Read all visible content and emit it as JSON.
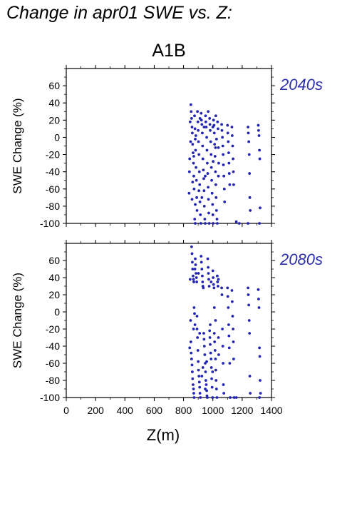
{
  "figure": {
    "title": "Change in apr01 SWE vs. Z:",
    "subtitle": "A1B"
  },
  "colors": {
    "points": "#2224b4",
    "panel_label": "#2b2fae",
    "axis": "#000000"
  },
  "chart_data": [
    {
      "type": "scatter",
      "panel_label": "2040s",
      "ylabel": "SWE Change (%)",
      "xlabel": "",
      "xlim": [
        0,
        1400
      ],
      "ylim": [
        -100,
        80
      ],
      "xticks": [
        0,
        200,
        400,
        600,
        800,
        1000,
        1200,
        1400
      ],
      "yticks": [
        -100,
        -80,
        -60,
        -40,
        -20,
        0,
        20,
        40,
        60
      ],
      "points": [
        [
          850,
          38
        ],
        [
          852,
          30
        ],
        [
          855,
          22
        ],
        [
          858,
          12
        ],
        [
          860,
          5
        ],
        [
          862,
          -8
        ],
        [
          865,
          -18
        ],
        [
          868,
          -30
        ],
        [
          870,
          -45
        ],
        [
          872,
          -60
        ],
        [
          845,
          18
        ],
        [
          848,
          -5
        ],
        [
          842,
          -25
        ],
        [
          840,
          -40
        ],
        [
          838,
          -65
        ],
        [
          875,
          25
        ],
        [
          878,
          10
        ],
        [
          880,
          -2
        ],
        [
          882,
          -15
        ],
        [
          885,
          -35
        ],
        [
          888,
          -50
        ],
        [
          890,
          -70
        ],
        [
          892,
          -85
        ],
        [
          876,
          -95
        ],
        [
          880,
          -100
        ],
        [
          895,
          30
        ],
        [
          898,
          18
        ],
        [
          900,
          8
        ],
        [
          902,
          -5
        ],
        [
          905,
          -20
        ],
        [
          908,
          -40
        ],
        [
          910,
          -55
        ],
        [
          912,
          -75
        ],
        [
          915,
          -90
        ],
        [
          918,
          -100
        ],
        [
          920,
          28
        ],
        [
          922,
          20
        ],
        [
          925,
          15
        ],
        [
          928,
          5
        ],
        [
          930,
          -10
        ],
        [
          932,
          -25
        ],
        [
          935,
          -38
        ],
        [
          938,
          -48
        ],
        [
          940,
          -62
        ],
        [
          942,
          -80
        ],
        [
          945,
          -95
        ],
        [
          948,
          -100
        ],
        [
          950,
          25
        ],
        [
          952,
          18
        ],
        [
          955,
          12
        ],
        [
          958,
          0
        ],
        [
          960,
          -15
        ],
        [
          962,
          -30
        ],
        [
          965,
          -42
        ],
        [
          968,
          -58
        ],
        [
          970,
          -72
        ],
        [
          972,
          -88
        ],
        [
          975,
          -100
        ],
        [
          978,
          22
        ],
        [
          980,
          15
        ],
        [
          982,
          8
        ],
        [
          985,
          -5
        ],
        [
          988,
          -20
        ],
        [
          990,
          -35
        ],
        [
          992,
          -50
        ],
        [
          995,
          -65
        ],
        [
          998,
          -78
        ],
        [
          1000,
          -90
        ],
        [
          1002,
          -100
        ],
        [
          1005,
          20
        ],
        [
          1008,
          14
        ],
        [
          1010,
          5
        ],
        [
          1012,
          -8
        ],
        [
          1015,
          -22
        ],
        [
          1018,
          -40
        ],
        [
          1020,
          -55
        ],
        [
          1022,
          -70
        ],
        [
          1025,
          -85
        ],
        [
          1028,
          -95
        ],
        [
          1030,
          -100
        ],
        [
          1032,
          18
        ],
        [
          1035,
          10
        ],
        [
          1038,
          -12
        ],
        [
          1040,
          -30
        ],
        [
          1060,
          15
        ],
        [
          1062,
          8
        ],
        [
          1065,
          0
        ],
        [
          1068,
          -10
        ],
        [
          1070,
          -20
        ],
        [
          1072,
          -32
        ],
        [
          1075,
          -45
        ],
        [
          1078,
          -60
        ],
        [
          1080,
          -75
        ],
        [
          1100,
          14
        ],
        [
          1102,
          5
        ],
        [
          1105,
          -5
        ],
        [
          1108,
          -18
        ],
        [
          1110,
          -30
        ],
        [
          1112,
          -42
        ],
        [
          1115,
          -55
        ],
        [
          1130,
          12
        ],
        [
          1132,
          2
        ],
        [
          1135,
          -10
        ],
        [
          1138,
          -25
        ],
        [
          1140,
          -40
        ],
        [
          1142,
          -55
        ],
        [
          1160,
          -98
        ],
        [
          1180,
          -100
        ],
        [
          1240,
          12
        ],
        [
          1242,
          5
        ],
        [
          1245,
          -5
        ],
        [
          1248,
          -20
        ],
        [
          1250,
          -42
        ],
        [
          1252,
          -70
        ],
        [
          1255,
          -85
        ],
        [
          1240,
          -100
        ],
        [
          1310,
          14
        ],
        [
          1312,
          8
        ],
        [
          1315,
          2
        ],
        [
          1318,
          -15
        ],
        [
          1320,
          -25
        ],
        [
          1322,
          -82
        ],
        [
          1318,
          -100
        ],
        [
          1020,
          25
        ],
        [
          1025,
          -2
        ],
        [
          968,
          30
        ],
        [
          940,
          12
        ],
        [
          912,
          22
        ],
        [
          884,
          2
        ],
        [
          870,
          -22
        ],
        [
          862,
          -52
        ],
        [
          858,
          -72
        ],
        [
          880,
          -78
        ],
        [
          905,
          -62
        ],
        [
          925,
          -70
        ],
        [
          948,
          -45
        ],
        [
          1002,
          -28
        ],
        [
          1018,
          -12
        ],
        [
          1038,
          -45
        ],
        [
          1000,
          12
        ]
      ]
    },
    {
      "type": "scatter",
      "panel_label": "2080s",
      "ylabel": "SWE Change (%)",
      "xlabel": "Z(m)",
      "xlim": [
        0,
        1400
      ],
      "ylim": [
        -100,
        80
      ],
      "xticks": [
        0,
        200,
        400,
        600,
        800,
        1000,
        1200,
        1400
      ],
      "yticks": [
        -100,
        -80,
        -60,
        -40,
        -20,
        0,
        20,
        40,
        60
      ],
      "points": [
        [
          855,
          76
        ],
        [
          858,
          68
        ],
        [
          860,
          58
        ],
        [
          862,
          50
        ],
        [
          865,
          42
        ],
        [
          868,
          38
        ],
        [
          870,
          35
        ],
        [
          872,
          5
        ],
        [
          875,
          -2
        ],
        [
          878,
          -15
        ],
        [
          850,
          -35
        ],
        [
          852,
          -48
        ],
        [
          855,
          -55
        ],
        [
          858,
          -62
        ],
        [
          860,
          -70
        ],
        [
          862,
          -78
        ],
        [
          865,
          -85
        ],
        [
          868,
          -90
        ],
        [
          870,
          -95
        ],
        [
          872,
          -100
        ],
        [
          845,
          38
        ],
        [
          848,
          -10
        ],
        [
          842,
          -42
        ],
        [
          880,
          62
        ],
        [
          882,
          55
        ],
        [
          885,
          45
        ],
        [
          888,
          40
        ],
        [
          890,
          35
        ],
        [
          892,
          -20
        ],
        [
          895,
          -30
        ],
        [
          898,
          -45
        ],
        [
          900,
          -58
        ],
        [
          902,
          -68
        ],
        [
          905,
          -75
        ],
        [
          908,
          -82
        ],
        [
          910,
          -88
        ],
        [
          912,
          -95
        ],
        [
          915,
          -100
        ],
        [
          920,
          65
        ],
        [
          922,
          58
        ],
        [
          925,
          50
        ],
        [
          928,
          42
        ],
        [
          930,
          35
        ],
        [
          932,
          30
        ],
        [
          935,
          28
        ],
        [
          938,
          -25
        ],
        [
          940,
          -32
        ],
        [
          942,
          -40
        ],
        [
          945,
          -50
        ],
        [
          948,
          -60
        ],
        [
          950,
          -70
        ],
        [
          952,
          -80
        ],
        [
          955,
          -85
        ],
        [
          958,
          -92
        ],
        [
          960,
          -98
        ],
        [
          962,
          -100
        ],
        [
          965,
          62
        ],
        [
          968,
          52
        ],
        [
          970,
          45
        ],
        [
          972,
          38
        ],
        [
          975,
          30
        ],
        [
          978,
          -22
        ],
        [
          980,
          -30
        ],
        [
          982,
          -38
        ],
        [
          985,
          -48
        ],
        [
          988,
          -55
        ],
        [
          990,
          -65
        ],
        [
          992,
          -78
        ],
        [
          995,
          -88
        ],
        [
          998,
          -100
        ],
        [
          1000,
          48
        ],
        [
          1002,
          40
        ],
        [
          1005,
          32
        ],
        [
          1008,
          28
        ],
        [
          1010,
          -25
        ],
        [
          1012,
          -35
        ],
        [
          1015,
          -45
        ],
        [
          1018,
          -55
        ],
        [
          1020,
          -68
        ],
        [
          1022,
          -80
        ],
        [
          1025,
          -90
        ],
        [
          1028,
          -100
        ],
        [
          1030,
          42
        ],
        [
          1032,
          35
        ],
        [
          1035,
          30
        ],
        [
          1038,
          -30
        ],
        [
          1040,
          -50
        ],
        [
          1060,
          28
        ],
        [
          1062,
          20
        ],
        [
          1065,
          -20
        ],
        [
          1068,
          -40
        ],
        [
          1070,
          -60
        ],
        [
          1072,
          -85
        ],
        [
          1075,
          -95
        ],
        [
          1100,
          28
        ],
        [
          1102,
          18
        ],
        [
          1105,
          5
        ],
        [
          1108,
          -15
        ],
        [
          1110,
          -28
        ],
        [
          1112,
          -42
        ],
        [
          1115,
          -60
        ],
        [
          1118,
          -100
        ],
        [
          1130,
          25
        ],
        [
          1132,
          12
        ],
        [
          1135,
          -5
        ],
        [
          1138,
          -20
        ],
        [
          1140,
          -35
        ],
        [
          1142,
          -55
        ],
        [
          1145,
          -100
        ],
        [
          1160,
          -100
        ],
        [
          1240,
          28
        ],
        [
          1242,
          20
        ],
        [
          1245,
          8
        ],
        [
          1248,
          -10
        ],
        [
          1250,
          -25
        ],
        [
          1252,
          -75
        ],
        [
          1255,
          -95
        ],
        [
          1310,
          26
        ],
        [
          1312,
          15
        ],
        [
          1315,
          5
        ],
        [
          1318,
          -42
        ],
        [
          1320,
          -52
        ],
        [
          1322,
          -80
        ],
        [
          1325,
          -95
        ],
        [
          1318,
          -100
        ],
        [
          910,
          -25
        ],
        [
          932,
          -65
        ],
        [
          958,
          -58
        ],
        [
          982,
          -15
        ],
        [
          1018,
          -10
        ],
        [
          868,
          -20
        ],
        [
          892,
          -5
        ],
        [
          925,
          -75
        ],
        [
          948,
          -90
        ],
        [
          998,
          -70
        ],
        [
          1010,
          5
        ],
        [
          878,
          50
        ],
        [
          902,
          45
        ],
        [
          988,
          35
        ],
        [
          1038,
          38
        ]
      ]
    }
  ]
}
